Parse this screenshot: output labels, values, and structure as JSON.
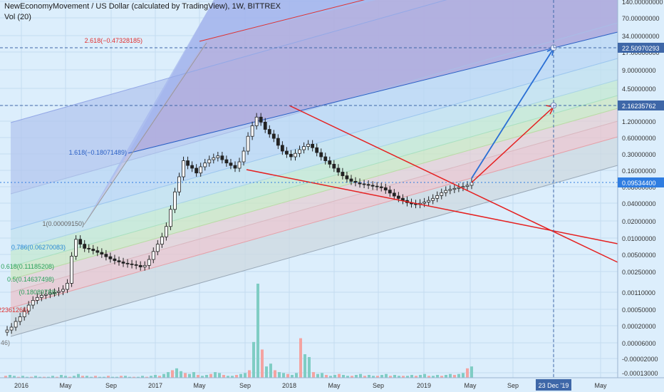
{
  "header": {
    "title": "NewEconomyMovement / US Dollar (calculated by TradingView), 1W, BITTREX",
    "volume_label": "Vol (20)"
  },
  "colors": {
    "background": "#dceefc",
    "grid": "#c4dcf0",
    "candle_up": "#26a69a",
    "candle_down": "#ef5350",
    "trend_line": "#e52020",
    "projection_blue": "#2a6fd4",
    "projection_red": "#e52020",
    "last_price_tag": "#2f7de1"
  },
  "chart_data": {
    "type": "candlestick",
    "scale": "log",
    "x_labels": [
      "2016",
      "May",
      "Sep",
      "2017",
      "May",
      "Sep",
      "2018",
      "May",
      "Sep",
      "2019",
      "May",
      "Sep",
      "23 Dec '19",
      "May"
    ],
    "y_ticks": [
      "140.00000000",
      "70.00000000",
      "34.00000000",
      "17.00000000",
      "9.00000000",
      "4.50000000",
      "2.30000000",
      "1.20000000",
      "0.60000000",
      "0.30000000",
      "0.16000000",
      "0.08000000",
      "0.04000000",
      "0.02000000",
      "0.01000000",
      "0.00500000",
      "0.00250000",
      "0.00110000",
      "0.00050000",
      "0.00020000",
      "0.00006000",
      "-0.00002000",
      "-0.00013000"
    ],
    "price_tags": {
      "target_high": "22.50970293",
      "target_low": "2.16235762",
      "last_price": "0.09534400",
      "time_tag": "23 Dec '19"
    },
    "fib_labels": [
      {
        "text": "2.618(−0.47328185)",
        "color": "#e03030"
      },
      {
        "text": "1.618(−0.18071489)",
        "color": "#2a5fc4"
      },
      {
        "text": "1(0.00009150)",
        "color": "#666666"
      },
      {
        "text": "0.786(0.06270083)",
        "color": "#2a8ad4"
      },
      {
        "text": "0.618(0.11185208)",
        "color": "#2aa05a"
      },
      {
        "text": "0.5(0.14637498)",
        "color": "#2aa05a"
      },
      {
        "text": "(0.18089788)",
        "color": "#2aa05a"
      },
      {
        "text": "22361266)",
        "color": "#e03030"
      },
      {
        "text": "46)",
        "color": "#777777"
      }
    ],
    "price_path": [
      0.00022,
      0.00024,
      0.00027,
      0.00034,
      0.00041,
      0.00052,
      0.00066,
      0.0008,
      0.0009,
      0.00098,
      0.00102,
      0.00108,
      0.0011,
      0.00115,
      0.00125,
      0.0016,
      0.0048,
      0.0095,
      0.0078,
      0.0066,
      0.0064,
      0.006,
      0.0056,
      0.0052,
      0.0047,
      0.0043,
      0.004,
      0.0038,
      0.0036,
      0.0035,
      0.0034,
      0.0033,
      0.0031,
      0.0033,
      0.0042,
      0.0058,
      0.0078,
      0.0105,
      0.016,
      0.032,
      0.065,
      0.12,
      0.23,
      0.19,
      0.17,
      0.14,
      0.18,
      0.21,
      0.24,
      0.26,
      0.28,
      0.24,
      0.21,
      0.19,
      0.17,
      0.22,
      0.34,
      0.62,
      0.95,
      1.35,
      1.1,
      0.82,
      0.68,
      0.57,
      0.43,
      0.34,
      0.3,
      0.27,
      0.31,
      0.36,
      0.41,
      0.45,
      0.39,
      0.32,
      0.27,
      0.23,
      0.2,
      0.17,
      0.145,
      0.125,
      0.11,
      0.1,
      0.095,
      0.09,
      0.088,
      0.085,
      0.082,
      0.08,
      0.077,
      0.07,
      0.062,
      0.055,
      0.05,
      0.046,
      0.042,
      0.04,
      0.039,
      0.041,
      0.043,
      0.046,
      0.05,
      0.056,
      0.063,
      0.069,
      0.072,
      0.075,
      0.078,
      0.081,
      0.085,
      0.0953
    ],
    "volume_path": [
      2,
      3,
      2,
      1,
      2,
      1,
      1,
      2,
      1,
      1,
      1,
      2,
      1,
      3,
      2,
      1,
      2,
      4,
      2,
      2,
      1,
      2,
      1,
      1,
      2,
      1,
      1,
      2,
      2,
      1,
      1,
      1,
      2,
      1,
      2,
      3,
      2,
      4,
      6,
      8,
      10,
      7,
      5,
      4,
      6,
      3,
      2,
      3,
      4,
      6,
      5,
      3,
      2,
      2,
      3,
      4,
      5,
      8,
      38,
      100,
      30,
      12,
      15,
      8,
      6,
      5,
      4,
      3,
      5,
      42,
      25,
      22,
      6,
      4,
      5,
      3,
      2,
      3,
      4,
      3,
      2,
      2,
      3,
      4,
      2,
      3,
      2,
      2,
      3,
      4,
      2,
      3,
      2,
      2,
      2,
      3,
      2,
      3,
      4,
      2,
      2,
      3,
      2,
      3,
      4,
      3,
      4,
      5,
      10,
      12
    ]
  }
}
